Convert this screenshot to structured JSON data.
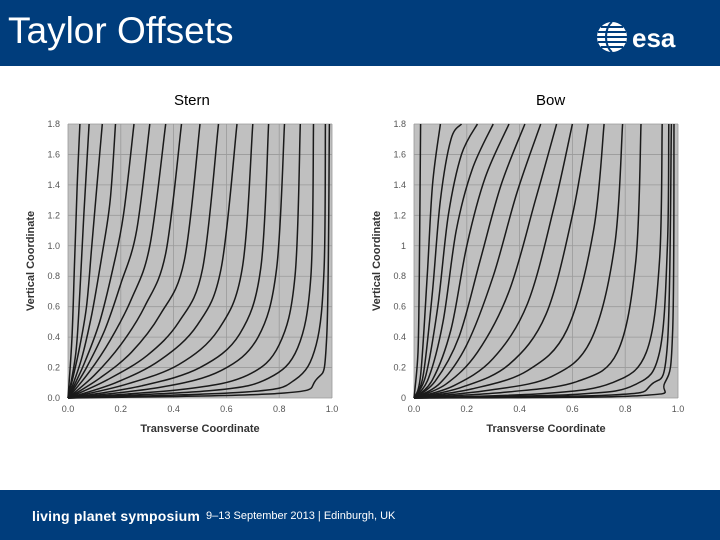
{
  "header": {
    "title": "Taylor Offsets",
    "logo_text": "esa",
    "background": "#003d7c"
  },
  "footer": {
    "event_name": "living planet symposium",
    "event_details": "9–13 September 2013 | Edinburgh, UK"
  },
  "chart_data": [
    {
      "type": "line",
      "title": "Stern",
      "xlabel": "Transverse Coordinate",
      "ylabel": "Vertical Coordinate",
      "xlim": [
        0,
        1
      ],
      "ylim": [
        0,
        1.8
      ],
      "x_ticks": [
        "0.0",
        "0.2",
        "0.4",
        "0.6",
        "0.8",
        "1.0"
      ],
      "y_ticks": [
        "0.0",
        "0.2",
        "0.4",
        "0.6",
        "0.8",
        "1.0",
        "1.2",
        "1.4",
        "1.6",
        "1.8"
      ],
      "grid": true,
      "plot_background": "#c0c0c0",
      "line_color": "#1a1a1a",
      "series": [
        {
          "values": [
            [
              0.0,
              0.0
            ],
            [
              0.015,
              0.4
            ],
            [
              0.025,
              0.9
            ],
            [
              0.035,
              1.4
            ],
            [
              0.045,
              1.8
            ]
          ]
        },
        {
          "values": [
            [
              0.0,
              0.0
            ],
            [
              0.03,
              0.3
            ],
            [
              0.045,
              0.7
            ],
            [
              0.06,
              1.2
            ],
            [
              0.08,
              1.8
            ]
          ]
        },
        {
          "values": [
            [
              0.0,
              0.0
            ],
            [
              0.04,
              0.3
            ],
            [
              0.07,
              0.6
            ],
            [
              0.09,
              1.0
            ],
            [
              0.11,
              1.4
            ],
            [
              0.13,
              1.8
            ]
          ]
        },
        {
          "values": [
            [
              0.0,
              0.0
            ],
            [
              0.05,
              0.25
            ],
            [
              0.09,
              0.55
            ],
            [
              0.13,
              0.95
            ],
            [
              0.16,
              1.3
            ],
            [
              0.18,
              1.8
            ]
          ]
        },
        {
          "values": [
            [
              0.0,
              0.0
            ],
            [
              0.06,
              0.22
            ],
            [
              0.12,
              0.5
            ],
            [
              0.17,
              0.85
            ],
            [
              0.21,
              1.2
            ],
            [
              0.25,
              1.8
            ]
          ]
        },
        {
          "values": [
            [
              0.0,
              0.0
            ],
            [
              0.07,
              0.2
            ],
            [
              0.14,
              0.45
            ],
            [
              0.2,
              0.75
            ],
            [
              0.26,
              1.1
            ],
            [
              0.31,
              1.8
            ]
          ]
        },
        {
          "values": [
            [
              0.0,
              0.0
            ],
            [
              0.08,
              0.17
            ],
            [
              0.16,
              0.38
            ],
            [
              0.24,
              0.65
            ],
            [
              0.31,
              1.0
            ],
            [
              0.37,
              1.8
            ]
          ]
        },
        {
          "values": [
            [
              0.0,
              0.0
            ],
            [
              0.1,
              0.15
            ],
            [
              0.2,
              0.35
            ],
            [
              0.29,
              0.6
            ],
            [
              0.37,
              0.95
            ],
            [
              0.43,
              1.8
            ]
          ]
        },
        {
          "values": [
            [
              0.0,
              0.0
            ],
            [
              0.12,
              0.13
            ],
            [
              0.24,
              0.3
            ],
            [
              0.35,
              0.55
            ],
            [
              0.44,
              0.9
            ],
            [
              0.5,
              1.8
            ]
          ]
        },
        {
          "values": [
            [
              0.0,
              0.0
            ],
            [
              0.15,
              0.12
            ],
            [
              0.3,
              0.28
            ],
            [
              0.42,
              0.5
            ],
            [
              0.51,
              0.85
            ],
            [
              0.57,
              1.8
            ]
          ]
        },
        {
          "values": [
            [
              0.0,
              0.0
            ],
            [
              0.18,
              0.1
            ],
            [
              0.35,
              0.25
            ],
            [
              0.49,
              0.48
            ],
            [
              0.58,
              0.85
            ],
            [
              0.64,
              1.8
            ]
          ]
        },
        {
          "values": [
            [
              0.0,
              0.0
            ],
            [
              0.22,
              0.09
            ],
            [
              0.42,
              0.22
            ],
            [
              0.57,
              0.45
            ],
            [
              0.66,
              0.85
            ],
            [
              0.7,
              1.8
            ]
          ]
        },
        {
          "values": [
            [
              0.0,
              0.0
            ],
            [
              0.28,
              0.08
            ],
            [
              0.5,
              0.2
            ],
            [
              0.65,
              0.42
            ],
            [
              0.73,
              0.85
            ],
            [
              0.76,
              1.8
            ]
          ]
        },
        {
          "values": [
            [
              0.0,
              0.0
            ],
            [
              0.35,
              0.07
            ],
            [
              0.58,
              0.18
            ],
            [
              0.72,
              0.4
            ],
            [
              0.79,
              0.85
            ],
            [
              0.82,
              1.8
            ]
          ]
        },
        {
          "values": [
            [
              0.0,
              0.0
            ],
            [
              0.45,
              0.06
            ],
            [
              0.68,
              0.15
            ],
            [
              0.8,
              0.35
            ],
            [
              0.86,
              0.8
            ],
            [
              0.88,
              1.8
            ]
          ]
        },
        {
          "values": [
            [
              0.0,
              0.0
            ],
            [
              0.55,
              0.05
            ],
            [
              0.76,
              0.13
            ],
            [
              0.87,
              0.33
            ],
            [
              0.92,
              0.8
            ],
            [
              0.93,
              1.8
            ]
          ]
        },
        {
          "values": [
            [
              0.0,
              0.0
            ],
            [
              0.68,
              0.04
            ],
            [
              0.86,
              0.12
            ],
            [
              0.94,
              0.35
            ],
            [
              0.97,
              0.85
            ],
            [
              0.975,
              1.8
            ]
          ]
        },
        {
          "values": [
            [
              0.0,
              0.0
            ],
            [
              0.8,
              0.03
            ],
            [
              0.94,
              0.12
            ],
            [
              0.98,
              0.4
            ],
            [
              0.99,
              1.8
            ]
          ]
        }
      ]
    },
    {
      "type": "line",
      "title": "Bow",
      "xlabel": "Transverse Coordinate",
      "ylabel": "Vertical Coordinate",
      "xlim": [
        0,
        1
      ],
      "ylim": [
        0,
        1.8
      ],
      "x_ticks": [
        "0.0",
        "0.2",
        "0.4",
        "0.6",
        "0.8",
        "1.0"
      ],
      "y_ticks": [
        "0",
        "0.2",
        "0.4",
        "0.6",
        "0.8",
        "1",
        "1.2",
        "1.4",
        "1.6",
        "1.8"
      ],
      "grid": true,
      "plot_background": "#c0c0c0",
      "line_color": "#1a1a1a",
      "series": [
        {
          "values": [
            [
              0.0,
              0.0
            ],
            [
              0.015,
              0.3
            ],
            [
              0.02,
              0.8
            ],
            [
              0.025,
              1.8
            ]
          ]
        },
        {
          "values": [
            [
              0.0,
              0.0
            ],
            [
              0.025,
              0.15
            ],
            [
              0.05,
              0.8
            ],
            [
              0.07,
              1.4
            ],
            [
              0.1,
              1.8
            ]
          ]
        },
        {
          "values": [
            [
              0.0,
              0.0
            ],
            [
              0.035,
              0.15
            ],
            [
              0.07,
              0.7
            ],
            [
              0.1,
              1.3
            ],
            [
              0.14,
              1.7
            ],
            [
              0.18,
              1.8
            ]
          ]
        },
        {
          "values": [
            [
              0.0,
              0.0
            ],
            [
              0.045,
              0.15
            ],
            [
              0.09,
              0.6
            ],
            [
              0.13,
              1.2
            ],
            [
              0.18,
              1.6
            ],
            [
              0.24,
              1.8
            ]
          ]
        },
        {
          "values": [
            [
              0.0,
              0.0
            ],
            [
              0.055,
              0.13
            ],
            [
              0.11,
              0.5
            ],
            [
              0.16,
              1.1
            ],
            [
              0.22,
              1.5
            ],
            [
              0.3,
              1.8
            ]
          ]
        },
        {
          "values": [
            [
              0.0,
              0.0
            ],
            [
              0.07,
              0.12
            ],
            [
              0.14,
              0.45
            ],
            [
              0.2,
              1.0
            ],
            [
              0.27,
              1.45
            ],
            [
              0.36,
              1.8
            ]
          ]
        },
        {
          "values": [
            [
              0.0,
              0.0
            ],
            [
              0.08,
              0.11
            ],
            [
              0.17,
              0.4
            ],
            [
              0.25,
              0.9
            ],
            [
              0.33,
              1.4
            ],
            [
              0.42,
              1.8
            ]
          ]
        },
        {
          "values": [
            [
              0.0,
              0.0
            ],
            [
              0.1,
              0.1
            ],
            [
              0.2,
              0.35
            ],
            [
              0.3,
              0.8
            ],
            [
              0.39,
              1.35
            ],
            [
              0.48,
              1.8
            ]
          ]
        },
        {
          "values": [
            [
              0.0,
              0.0
            ],
            [
              0.12,
              0.09
            ],
            [
              0.24,
              0.3
            ],
            [
              0.36,
              0.7
            ],
            [
              0.46,
              1.3
            ],
            [
              0.54,
              1.8
            ]
          ]
        },
        {
          "values": [
            [
              0.0,
              0.0
            ],
            [
              0.15,
              0.08
            ],
            [
              0.3,
              0.26
            ],
            [
              0.43,
              0.62
            ],
            [
              0.53,
              1.25
            ],
            [
              0.6,
              1.8
            ]
          ]
        },
        {
          "values": [
            [
              0.0,
              0.0
            ],
            [
              0.18,
              0.07
            ],
            [
              0.36,
              0.22
            ],
            [
              0.5,
              0.55
            ],
            [
              0.6,
              1.2
            ],
            [
              0.66,
              1.8
            ]
          ]
        },
        {
          "values": [
            [
              0.0,
              0.0
            ],
            [
              0.22,
              0.06
            ],
            [
              0.43,
              0.18
            ],
            [
              0.58,
              0.45
            ],
            [
              0.68,
              1.1
            ],
            [
              0.72,
              1.8
            ]
          ]
        },
        {
          "values": [
            [
              0.0,
              0.0
            ],
            [
              0.28,
              0.05
            ],
            [
              0.52,
              0.14
            ],
            [
              0.67,
              0.38
            ],
            [
              0.76,
              1.0
            ],
            [
              0.79,
              1.8
            ]
          ]
        },
        {
          "values": [
            [
              0.0,
              0.0
            ],
            [
              0.36,
              0.04
            ],
            [
              0.62,
              0.11
            ],
            [
              0.77,
              0.3
            ],
            [
              0.84,
              0.9
            ],
            [
              0.86,
              1.8
            ]
          ]
        },
        {
          "values": [
            [
              0.0,
              0.0
            ],
            [
              0.5,
              0.03
            ],
            [
              0.75,
              0.1
            ],
            [
              0.88,
              0.3
            ],
            [
              0.93,
              0.9
            ],
            [
              0.94,
              1.8
            ]
          ]
        },
        {
          "values": [
            [
              0.0,
              0.0
            ],
            [
              0.62,
              0.025
            ],
            [
              0.84,
              0.09
            ],
            [
              0.93,
              0.3
            ],
            [
              0.96,
              1.0
            ],
            [
              0.965,
              1.8
            ]
          ]
        },
        {
          "values": [
            [
              0.0,
              0.0
            ],
            [
              0.75,
              0.02
            ],
            [
              0.9,
              0.09
            ],
            [
              0.96,
              0.35
            ],
            [
              0.975,
              1.8
            ]
          ]
        },
        {
          "values": [
            [
              0.0,
              0.0
            ],
            [
              0.85,
              0.015
            ],
            [
              0.95,
              0.1
            ],
            [
              0.98,
              0.45
            ],
            [
              0.985,
              1.8
            ]
          ]
        }
      ]
    }
  ]
}
